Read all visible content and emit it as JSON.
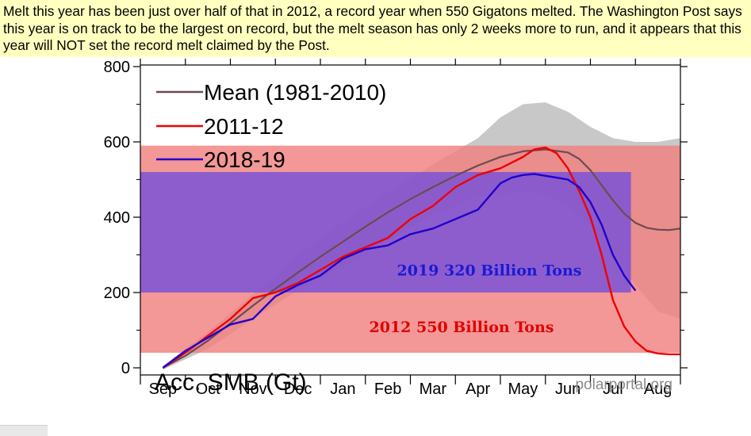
{
  "caption": {
    "text": "Melt this year has been just over half of that in 2012, a record year when 550 Gigatons melted.  The Washington Post says this year is on track to be the largest on record, but the melt season has only 2 weeks more to run, and it appears that this year will NOT set the record melt claimed by the Post."
  },
  "colors": {
    "caption_bg": "#ffffc0",
    "mean_line": "#6e4a50",
    "series_2011_12": "#ee0000",
    "series_2018_19": "#2200cc",
    "band_2012": "#f08080",
    "band_2019": "#7b52d6",
    "label_2012": "#e00000",
    "label_2019": "#1a1ad6"
  },
  "chart_data": {
    "type": "line",
    "ylabel": "Acc. SMB (Gt)",
    "watermark": "polarportal.org",
    "ylim": [
      -5,
      800
    ],
    "yticks": [
      0,
      200,
      400,
      600,
      800
    ],
    "categories": [
      "Sep",
      "Oct",
      "Nov",
      "Dec",
      "Jan",
      "Feb",
      "Mar",
      "Apr",
      "May",
      "Jun",
      "Jul",
      "Aug"
    ],
    "legend_position": "top-left",
    "series": [
      {
        "name": "Mean (1981-2010)",
        "x": [
          0,
          0.5,
          1,
          1.5,
          2,
          2.5,
          3,
          3.5,
          4,
          4.5,
          5,
          5.5,
          6,
          6.5,
          7,
          7.5,
          8,
          8.5,
          9,
          9.25,
          9.5,
          9.75,
          10,
          10.25,
          10.5,
          10.75,
          11,
          11.25,
          11.5
        ],
        "values": [
          0,
          32,
          72,
          118,
          165,
          210,
          253,
          295,
          335,
          375,
          413,
          448,
          480,
          510,
          537,
          560,
          575,
          580,
          572,
          555,
          525,
          485,
          445,
          410,
          385,
          372,
          367,
          366,
          370
        ]
      },
      {
        "name": "2011-12",
        "x": [
          0,
          0.5,
          1,
          1.5,
          2,
          2.5,
          3,
          3.5,
          4,
          4.5,
          5,
          5.5,
          6,
          6.5,
          7,
          7.5,
          8,
          8.25,
          8.5,
          8.75,
          9,
          9.25,
          9.5,
          9.75,
          10,
          10.25,
          10.5,
          10.75,
          11,
          11.25,
          11.5
        ],
        "values": [
          0,
          40,
          85,
          130,
          185,
          200,
          225,
          260,
          295,
          320,
          345,
          395,
          430,
          480,
          512,
          530,
          560,
          580,
          585,
          570,
          530,
          470,
          400,
          300,
          180,
          110,
          70,
          45,
          38,
          36,
          36
        ]
      },
      {
        "name": "2018-19",
        "x": [
          0,
          0.5,
          1,
          1.5,
          2,
          2.5,
          3,
          3.5,
          4,
          4.5,
          5,
          5.5,
          6,
          6.5,
          7,
          7.25,
          7.5,
          7.75,
          8,
          8.25,
          8.5,
          8.75,
          9,
          9.25,
          9.5,
          9.75,
          10,
          10.25,
          10.5
        ],
        "values": [
          0,
          45,
          80,
          115,
          130,
          190,
          220,
          245,
          290,
          315,
          325,
          355,
          370,
          395,
          420,
          455,
          490,
          505,
          512,
          515,
          510,
          505,
          500,
          480,
          440,
          380,
          300,
          245,
          205
        ]
      }
    ],
    "mean_band": {
      "x": [
        0,
        1,
        2,
        3,
        4,
        5,
        6,
        7,
        7.5,
        8,
        8.5,
        9,
        9.5,
        10,
        10.5,
        11,
        11.5
      ],
      "upper": [
        5,
        95,
        195,
        300,
        385,
        465,
        540,
        610,
        665,
        700,
        705,
        680,
        640,
        610,
        600,
        600,
        610
      ],
      "lower": [
        -5,
        50,
        130,
        205,
        270,
        340,
        405,
        455,
        460,
        470,
        460,
        430,
        380,
        300,
        220,
        150,
        130
      ]
    },
    "annotations": [
      {
        "text": "2019 320 Billion Tons",
        "range": [
          200,
          520
        ]
      },
      {
        "text": "2012 550 Billion Tons",
        "range": [
          40,
          590
        ]
      }
    ]
  }
}
